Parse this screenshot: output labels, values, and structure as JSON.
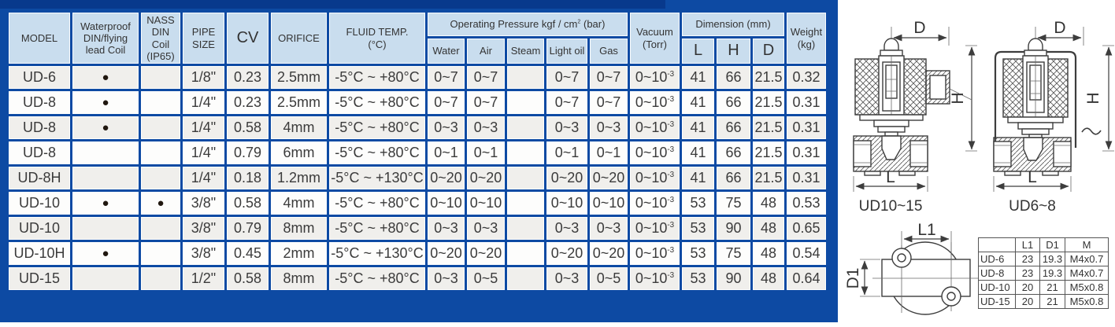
{
  "colors": {
    "panel_navy": "#0d4aa3",
    "panel_strip_dark": "#08398c",
    "header_blue": "#c9ddee",
    "row_gray": "#f0efec",
    "row_white": "#fdfdfc"
  },
  "spec_table": {
    "headers": {
      "model": "MODEL",
      "waterproof": "Waterproof DIN/flying lead Coil",
      "nass": "NASS DIN Coil (IP65)",
      "pipe_size": "PIPE SIZE",
      "cv": "CV",
      "orifice": "ORIFICE",
      "fluid_temp_line1": "FLUID TEMP.",
      "fluid_temp_line2": "(°C)",
      "op_prefix": "Operating Pressure kgf / cm",
      "op_sup": "2",
      "op_suffix": " (bar)",
      "pressure_cols": [
        "Water",
        "Air",
        "Steam",
        "Light oil",
        "Gas"
      ],
      "vacuum_line1": "Vacuum",
      "vacuum_line2": "(Torr)",
      "dimension": "Dimension (mm)",
      "dim_cols": [
        "L",
        "H",
        "D"
      ],
      "weight_line1": "Weight",
      "weight_line2": "(kg)"
    },
    "dot_glyph": "●",
    "vacuum_base": "0~10",
    "vacuum_exp": "-3",
    "rows": [
      {
        "model": "UD-6",
        "waterproof": true,
        "nass": false,
        "pipe": "1/8\"",
        "cv": "0.23",
        "orifice": "2.5mm",
        "temp": "-5°C ~ +80°C",
        "water": "0~7",
        "air": "0~7",
        "steam": "",
        "light_oil": "0~7",
        "gas": "0~7",
        "L": "41",
        "H": "66",
        "D": "21.5",
        "weight": "0.32"
      },
      {
        "model": "UD-8",
        "waterproof": true,
        "nass": false,
        "pipe": "1/4\"",
        "cv": "0.23",
        "orifice": "2.5mm",
        "temp": "-5°C ~ +80°C",
        "water": "0~7",
        "air": "0~7",
        "steam": "",
        "light_oil": "0~7",
        "gas": "0~7",
        "L": "41",
        "H": "66",
        "D": "21.5",
        "weight": "0.31"
      },
      {
        "model": "UD-8",
        "waterproof": true,
        "nass": false,
        "pipe": "1/4\"",
        "cv": "0.58",
        "orifice": "4mm",
        "temp": "-5°C ~ +80°C",
        "water": "0~3",
        "air": "0~3",
        "steam": "",
        "light_oil": "0~3",
        "gas": "0~3",
        "L": "41",
        "H": "66",
        "D": "21.5",
        "weight": "0.31"
      },
      {
        "model": "UD-8",
        "waterproof": false,
        "nass": false,
        "pipe": "1/4\"",
        "cv": "0.79",
        "orifice": "6mm",
        "temp": "-5°C ~ +80°C",
        "water": "0~1",
        "air": "0~1",
        "steam": "",
        "light_oil": "0~1",
        "gas": "0~1",
        "L": "41",
        "H": "66",
        "D": "21.5",
        "weight": "0.31"
      },
      {
        "model": "UD-8H",
        "waterproof": false,
        "nass": false,
        "pipe": "1/4\"",
        "cv": "0.18",
        "orifice": "1.2mm",
        "temp": "-5°C ~ +130°C",
        "water": "0~20",
        "air": "0~20",
        "steam": "",
        "light_oil": "0~20",
        "gas": "0~20",
        "L": "41",
        "H": "66",
        "D": "21.5",
        "weight": "0.31"
      },
      {
        "model": "UD-10",
        "waterproof": true,
        "nass": true,
        "pipe": "3/8\"",
        "cv": "0.58",
        "orifice": "4mm",
        "temp": "-5°C ~ +80°C",
        "water": "0~10",
        "air": "0~10",
        "steam": "",
        "light_oil": "0~10",
        "gas": "0~10",
        "L": "53",
        "H": "75",
        "D": "48",
        "weight": "0.53"
      },
      {
        "model": "UD-10",
        "waterproof": false,
        "nass": false,
        "pipe": "3/8\"",
        "cv": "0.79",
        "orifice": "8mm",
        "temp": "-5°C ~ +80°C",
        "water": "0~3",
        "air": "0~3",
        "steam": "",
        "light_oil": "0~3",
        "gas": "0~3",
        "L": "53",
        "H": "90",
        "D": "48",
        "weight": "0.65"
      },
      {
        "model": "UD-10H",
        "waterproof": true,
        "nass": false,
        "pipe": "3/8\"",
        "cv": "0.45",
        "orifice": "2mm",
        "temp": "-5°C ~ +130°C",
        "water": "0~20",
        "air": "0~20",
        "steam": "",
        "light_oil": "0~20",
        "gas": "0~20",
        "L": "53",
        "H": "75",
        "D": "48",
        "weight": "0.54"
      },
      {
        "model": "UD-15",
        "waterproof": false,
        "nass": false,
        "pipe": "1/2\"",
        "cv": "0.58",
        "orifice": "8mm",
        "temp": "-5°C ~ +80°C",
        "water": "0~3",
        "air": "0~5",
        "steam": "",
        "light_oil": "0~3",
        "gas": "0~5",
        "L": "53",
        "H": "90",
        "D": "48",
        "weight": "0.64"
      }
    ]
  },
  "diagrams": {
    "valve_left": {
      "caption": "UD10~15",
      "dim_top": "D",
      "dim_right": "H",
      "dim_bottom": "L"
    },
    "valve_right": {
      "caption": "UD6~8",
      "dim_top": "D",
      "dim_right": "H",
      "dim_bottom": "L"
    },
    "top_view": {
      "dim_top": "L1",
      "dim_left": "D1"
    }
  },
  "mount_table": {
    "headers": [
      "",
      "L1",
      "D1",
      "M"
    ],
    "rows": [
      [
        "UD-6",
        "23",
        "19.3",
        "M4x0.7"
      ],
      [
        "UD-8",
        "23",
        "19.3",
        "M4x0.7"
      ],
      [
        "UD-10",
        "20",
        "21",
        "M5x0.8"
      ],
      [
        "UD-15",
        "20",
        "21",
        "M5x0.8"
      ]
    ]
  }
}
